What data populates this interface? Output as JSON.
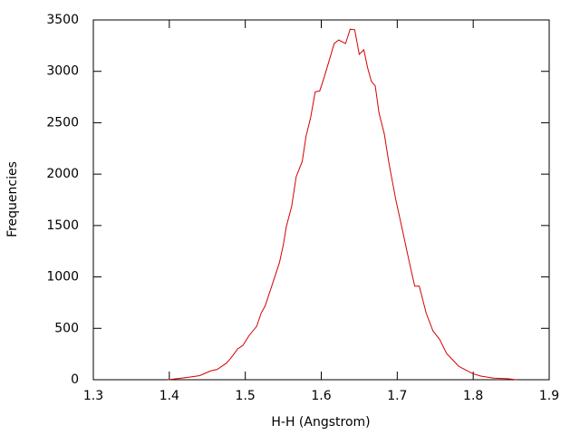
{
  "chart_data": {
    "type": "line",
    "x_label": "H-H (Angstrom)",
    "y_label": "Frequencies",
    "x": [
      1.398,
      1.416,
      1.431,
      1.44,
      1.454,
      1.463,
      1.475,
      1.481,
      1.49,
      1.497,
      1.505,
      1.515,
      1.521,
      1.526,
      1.535,
      1.545,
      1.55,
      1.554,
      1.561,
      1.567,
      1.575,
      1.58,
      1.586,
      1.592,
      1.598,
      1.604,
      1.61,
      1.617,
      1.623,
      1.632,
      1.638,
      1.644,
      1.65,
      1.656,
      1.661,
      1.666,
      1.671,
      1.676,
      1.683,
      1.689,
      1.698,
      1.707,
      1.716,
      1.723,
      1.729,
      1.738,
      1.747,
      1.756,
      1.765,
      1.774,
      1.781,
      1.79,
      1.799,
      1.81,
      1.827,
      1.845,
      1.857
    ],
    "values": [
      0,
      15,
      30,
      40,
      85,
      100,
      160,
      210,
      300,
      335,
      430,
      520,
      650,
      715,
      915,
      1140,
      1310,
      1490,
      1685,
      1975,
      2125,
      2370,
      2550,
      2800,
      2810,
      2945,
      3095,
      3270,
      3305,
      3270,
      3410,
      3405,
      3165,
      3210,
      3035,
      2900,
      2860,
      2595,
      2390,
      2110,
      1755,
      1450,
      1140,
      910,
      910,
      650,
      475,
      390,
      255,
      185,
      130,
      95,
      60,
      35,
      15,
      10,
      0
    ],
    "color": "#d40000",
    "xlim": [
      1.3,
      1.9
    ],
    "xticks": [
      1.3,
      1.4,
      1.5,
      1.6,
      1.7,
      1.8,
      1.9
    ],
    "ylim": [
      0,
      3500
    ],
    "yticks": [
      0,
      500,
      1000,
      1500,
      2000,
      2500,
      3000,
      3500
    ]
  }
}
